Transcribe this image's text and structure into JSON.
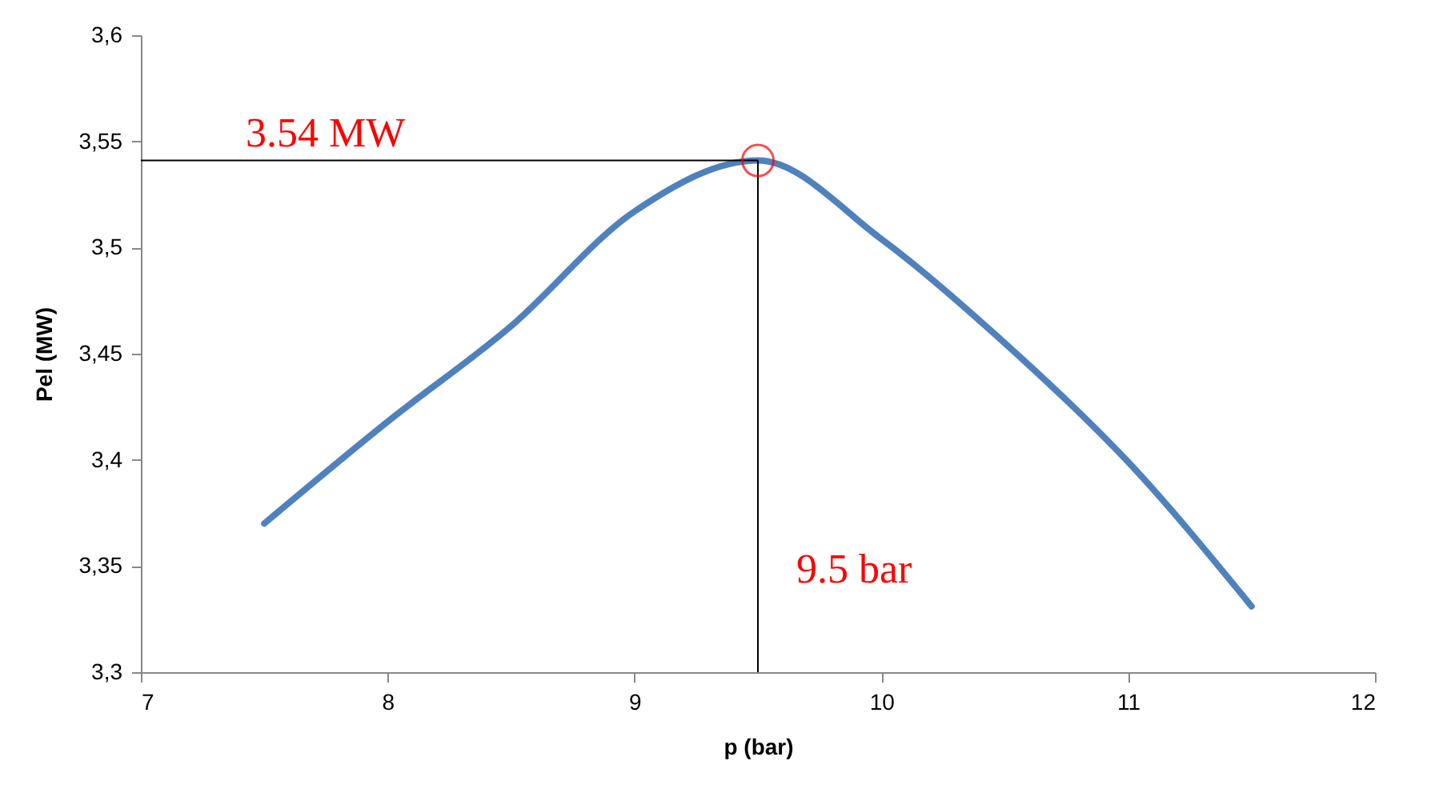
{
  "chart_data": {
    "type": "line",
    "xlabel": "p (bar)",
    "ylabel": "Pel (MW)",
    "xlim": [
      7,
      12
    ],
    "xticks": [
      7,
      8,
      9,
      10,
      11,
      12
    ],
    "ylim": [
      3.3,
      3.6
    ],
    "yticks": [
      {
        "value": 3.3,
        "label": "3,3"
      },
      {
        "value": 3.35,
        "label": "3,35"
      },
      {
        "value": 3.4,
        "label": "3,4"
      },
      {
        "value": 3.45,
        "label": "3,45"
      },
      {
        "value": 3.5,
        "label": "3,5"
      },
      {
        "value": 3.55,
        "label": "3,55"
      },
      {
        "value": 3.6,
        "label": "3,6"
      }
    ],
    "grid": false,
    "series": [
      {
        "color": "#4f81bd",
        "x": [
          7.5,
          8,
          8.5,
          9,
          9.5,
          10,
          10.5,
          11,
          11.5
        ],
        "values": [
          3.37,
          3.418,
          3.463,
          3.517,
          3.541,
          3.504,
          3.455,
          3.399,
          3.331
        ]
      },
      {
        "type": "scatter",
        "marker": "circle",
        "color": "#ff0000",
        "x": [
          9.5
        ],
        "values": [
          3.541
        ]
      }
    ],
    "ref_lines": [
      {
        "axis": "y",
        "value": 3.541,
        "label": "3.54 MW",
        "color": "#000000"
      },
      {
        "axis": "x",
        "value": 9.5,
        "label": "9.5 bar",
        "color": "#000000"
      }
    ]
  }
}
